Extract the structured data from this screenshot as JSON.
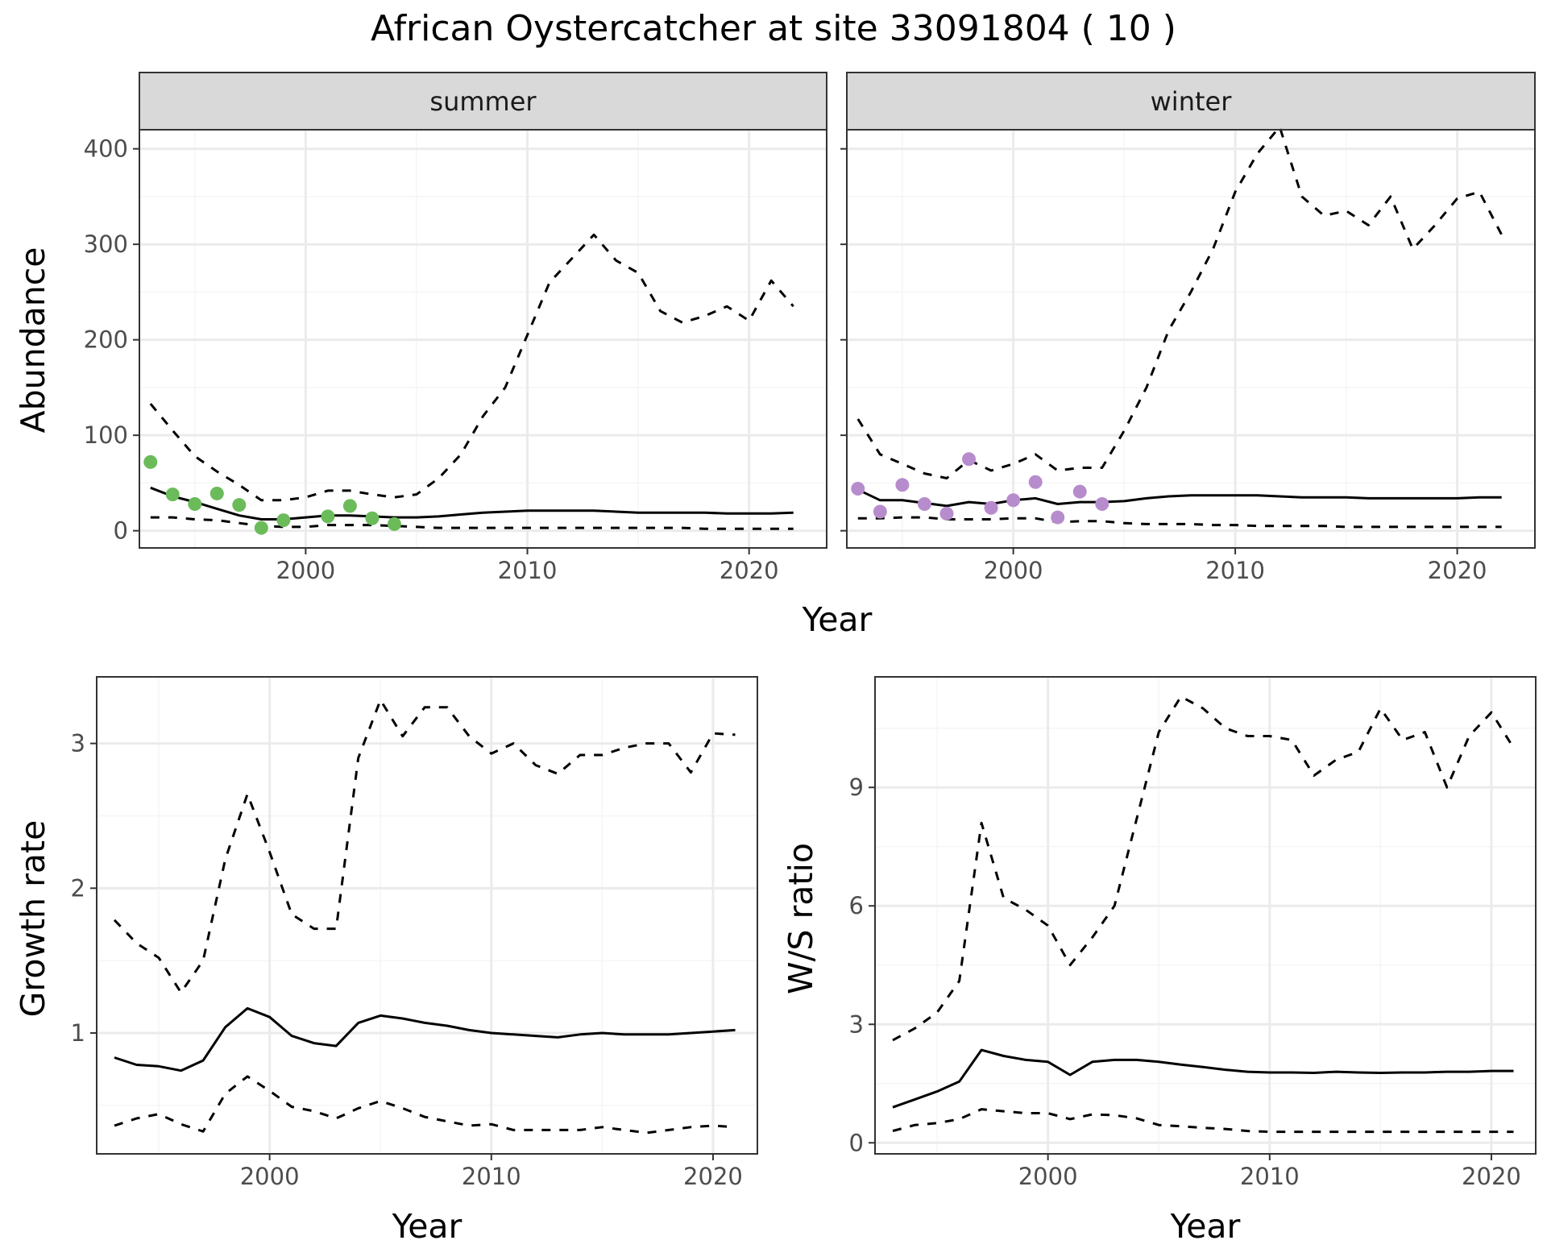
{
  "title": "African Oystercatcher at site 33091804 ( 10 )",
  "colors": {
    "summer_points": "#6bbb5a",
    "winter_points": "#b78ccc",
    "lines": "#000000",
    "panel_border": "#333333",
    "grid_major": "#ebebeb",
    "grid_minor": "#f5f5f5",
    "strip_fill": "#d9d9d9"
  },
  "chart_data": [
    {
      "type": "line",
      "facet": "summer",
      "xlabel": "Year",
      "ylabel": "Abundance",
      "xlim": [
        1992.5,
        2023.5
      ],
      "ylim": [
        -18,
        420
      ],
      "xticks": [
        2000,
        2010,
        2020
      ],
      "yticks": [
        0,
        100,
        200,
        300,
        400
      ],
      "grid": true,
      "x": [
        1993,
        1994,
        1995,
        1996,
        1997,
        1998,
        1999,
        2000,
        2001,
        2002,
        2003,
        2004,
        2005,
        2006,
        2007,
        2008,
        2009,
        2010,
        2011,
        2012,
        2013,
        2014,
        2015,
        2016,
        2017,
        2018,
        2019,
        2020,
        2021,
        2022
      ],
      "series": [
        {
          "style": "dashed",
          "values": [
            133,
            105,
            78,
            62,
            48,
            32,
            32,
            35,
            42,
            42,
            38,
            35,
            38,
            55,
            80,
            120,
            150,
            205,
            260,
            285,
            310,
            283,
            270,
            230,
            218,
            225,
            235,
            220,
            262,
            235
          ]
        },
        {
          "style": "solid",
          "values": [
            45,
            36,
            30,
            23,
            16,
            12,
            12,
            14,
            16,
            16,
            15,
            14,
            14,
            15,
            17,
            19,
            20,
            21,
            21,
            21,
            21,
            20,
            19,
            19,
            19,
            19,
            18,
            18,
            18,
            19
          ]
        },
        {
          "style": "dashed",
          "values": [
            14,
            14,
            12,
            11,
            8,
            5,
            4,
            4,
            6,
            6,
            6,
            5,
            4,
            3,
            3,
            3,
            3,
            3,
            3,
            3,
            3,
            3,
            3,
            3,
            3,
            2,
            2,
            2,
            2,
            2
          ]
        }
      ],
      "points": {
        "x": [
          1993,
          1994,
          1995,
          1996,
          1997,
          1998,
          1999,
          2001,
          2002,
          2003,
          2004
        ],
        "y": [
          72,
          38,
          28,
          39,
          27,
          3,
          11,
          15,
          26,
          13,
          7
        ]
      }
    },
    {
      "type": "line",
      "facet": "winter",
      "xlabel": "Year",
      "ylabel": "Abundance",
      "xlim": [
        1992.5,
        2023.5
      ],
      "ylim": [
        -18,
        420
      ],
      "xticks": [
        2000,
        2010,
        2020
      ],
      "yticks": [
        0,
        100,
        200,
        300,
        400
      ],
      "grid": true,
      "x": [
        1993,
        1994,
        1995,
        1996,
        1997,
        1998,
        1999,
        2000,
        2001,
        2002,
        2003,
        2004,
        2005,
        2006,
        2007,
        2008,
        2009,
        2010,
        2011,
        2012,
        2013,
        2014,
        2015,
        2016,
        2017,
        2018,
        2019,
        2020,
        2021,
        2022
      ],
      "series": [
        {
          "style": "dashed",
          "values": [
            117,
            80,
            70,
            60,
            55,
            74,
            63,
            70,
            80,
            63,
            66,
            66,
            105,
            150,
            210,
            250,
            295,
            355,
            395,
            423,
            350,
            330,
            335,
            320,
            350,
            295,
            320,
            348,
            355,
            310
          ]
        },
        {
          "style": "solid",
          "values": [
            43,
            32,
            32,
            29,
            26,
            30,
            28,
            32,
            34,
            28,
            30,
            30,
            31,
            34,
            36,
            37,
            37,
            37,
            37,
            36,
            35,
            35,
            35,
            34,
            34,
            34,
            34,
            34,
            35,
            35
          ]
        },
        {
          "style": "dashed",
          "values": [
            13,
            13,
            14,
            14,
            12,
            12,
            12,
            13,
            13,
            9,
            10,
            10,
            8,
            7,
            7,
            7,
            6,
            6,
            5,
            5,
            5,
            5,
            4,
            4,
            4,
            4,
            4,
            4,
            4,
            4
          ]
        }
      ],
      "points": {
        "x": [
          1993,
          1994,
          1995,
          1996,
          1997,
          1998,
          1999,
          2000,
          2001,
          2002,
          2003,
          2004
        ],
        "y": [
          44,
          20,
          48,
          28,
          18,
          75,
          24,
          32,
          51,
          14,
          41,
          28
        ]
      }
    },
    {
      "type": "line",
      "xlabel": "Year",
      "ylabel": "Growth rate",
      "xlim": [
        1992.2,
        2022.0
      ],
      "ylim": [
        0.165,
        3.46
      ],
      "xticks": [
        2000,
        2010,
        2020
      ],
      "yticks": [
        1,
        2,
        3
      ],
      "grid": true,
      "x": [
        1993,
        1994,
        1995,
        1996,
        1997,
        1998,
        1999,
        2000,
        2001,
        2002,
        2003,
        2004,
        2005,
        2006,
        2007,
        2008,
        2009,
        2010,
        2011,
        2012,
        2013,
        2014,
        2015,
        2016,
        2017,
        2018,
        2019,
        2020,
        2021
      ],
      "series": [
        {
          "style": "dashed",
          "values": [
            1.78,
            1.62,
            1.52,
            1.28,
            1.5,
            2.2,
            2.65,
            2.25,
            1.82,
            1.72,
            1.72,
            2.9,
            3.3,
            3.05,
            3.25,
            3.25,
            3.05,
            2.93,
            3.0,
            2.85,
            2.79,
            2.92,
            2.92,
            2.97,
            3.0,
            3.0,
            2.8,
            3.07,
            3.06
          ]
        },
        {
          "style": "solid",
          "values": [
            0.83,
            0.78,
            0.77,
            0.74,
            0.81,
            1.04,
            1.17,
            1.11,
            0.98,
            0.93,
            0.91,
            1.07,
            1.12,
            1.1,
            1.07,
            1.05,
            1.02,
            1.0,
            0.99,
            0.98,
            0.97,
            0.99,
            1.0,
            0.99,
            0.99,
            0.99,
            1.0,
            1.01,
            1.02
          ]
        },
        {
          "style": "dashed",
          "values": [
            0.36,
            0.41,
            0.44,
            0.37,
            0.32,
            0.58,
            0.7,
            0.6,
            0.49,
            0.46,
            0.41,
            0.48,
            0.53,
            0.48,
            0.42,
            0.39,
            0.36,
            0.37,
            0.33,
            0.33,
            0.33,
            0.33,
            0.35,
            0.33,
            0.31,
            0.33,
            0.35,
            0.36,
            0.35
          ]
        }
      ]
    },
    {
      "type": "line",
      "xlabel": "Year",
      "ylabel": "W/S ratio",
      "xlim": [
        1992.2,
        2022.0
      ],
      "ylim": [
        -0.28,
        11.8
      ],
      "xticks": [
        2000,
        2010,
        2020
      ],
      "yticks": [
        0,
        3,
        6,
        9
      ],
      "grid": true,
      "x": [
        1993,
        1994,
        1995,
        1996,
        1997,
        1998,
        1999,
        2000,
        2001,
        2002,
        2003,
        2004,
        2005,
        2006,
        2007,
        2008,
        2009,
        2010,
        2011,
        2012,
        2013,
        2014,
        2015,
        2016,
        2017,
        2018,
        2019,
        2020,
        2021
      ],
      "series": [
        {
          "style": "dashed",
          "values": [
            2.6,
            2.9,
            3.3,
            4.1,
            8.1,
            6.2,
            5.9,
            5.5,
            4.5,
            5.2,
            6.0,
            8.2,
            10.4,
            11.3,
            11.0,
            10.5,
            10.3,
            10.3,
            10.2,
            9.3,
            9.7,
            9.9,
            11.0,
            10.2,
            10.4,
            9.0,
            10.3,
            10.9,
            10.0
          ]
        },
        {
          "style": "solid",
          "values": [
            0.9,
            1.1,
            1.3,
            1.55,
            2.35,
            2.2,
            2.1,
            2.05,
            1.72,
            2.05,
            2.1,
            2.1,
            2.05,
            1.98,
            1.92,
            1.85,
            1.8,
            1.78,
            1.78,
            1.77,
            1.8,
            1.78,
            1.77,
            1.78,
            1.78,
            1.8,
            1.8,
            1.82,
            1.82
          ]
        },
        {
          "style": "dashed",
          "values": [
            0.3,
            0.45,
            0.5,
            0.6,
            0.85,
            0.8,
            0.75,
            0.75,
            0.6,
            0.72,
            0.7,
            0.62,
            0.45,
            0.42,
            0.38,
            0.35,
            0.3,
            0.28,
            0.28,
            0.28,
            0.28,
            0.28,
            0.28,
            0.28,
            0.28,
            0.28,
            0.28,
            0.28,
            0.28
          ]
        }
      ]
    }
  ],
  "strips": [
    "summer",
    "winter"
  ],
  "shared_xlabel": "Year"
}
